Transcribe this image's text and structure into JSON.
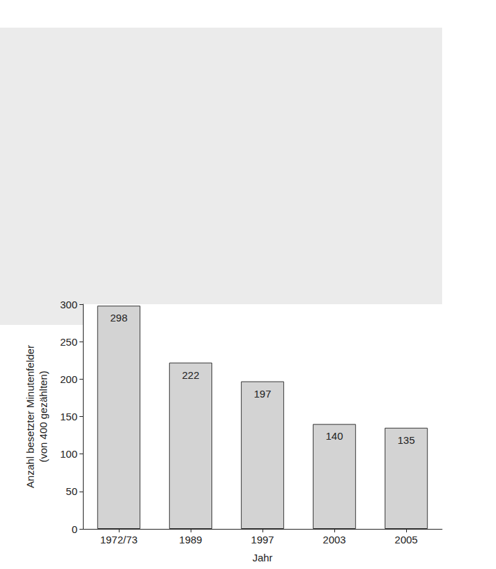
{
  "chart_data": {
    "type": "bar",
    "categories": [
      "1972/73",
      "1989",
      "1997",
      "2003",
      "2005"
    ],
    "values": [
      298,
      222,
      197,
      140,
      135
    ],
    "color": "#d3d3d3",
    "x_label": "Jahr",
    "y_label": "Anzahl besetzter Minutenfelder\n(von 400 gezählten)",
    "ylim": [
      0,
      300
    ],
    "yticks": [
      0,
      50,
      100,
      150,
      200,
      250,
      300
    ],
    "grid": false,
    "data_labels": true
  }
}
